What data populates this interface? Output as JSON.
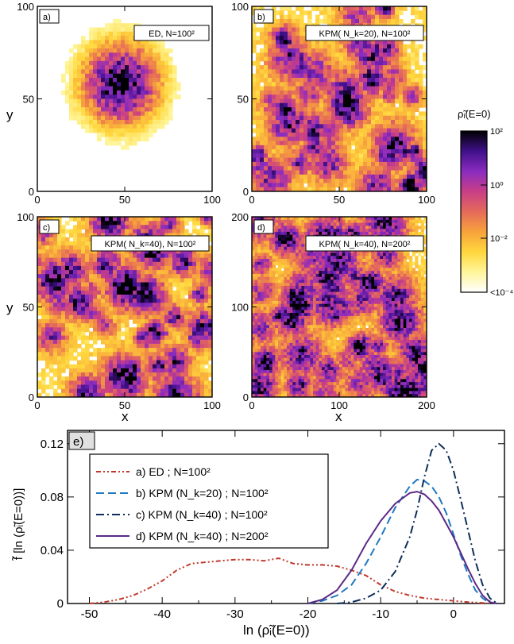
{
  "panels": [
    {
      "tag": "a)",
      "label": "ED, N=100²",
      "xticks": [
        0,
        50,
        100
      ],
      "yticks": [
        0,
        50,
        100
      ],
      "range": [
        0,
        100
      ]
    },
    {
      "tag": "b)",
      "label": "KPM( N_k=20), N=100²",
      "xticks": [
        0,
        50,
        100
      ],
      "yticks": [
        0,
        50,
        100
      ],
      "range": [
        0,
        100
      ]
    },
    {
      "tag": "c)",
      "label": "KPM( N_k=40), N=100²",
      "xticks": [
        0,
        50,
        100
      ],
      "yticks": [
        0,
        50,
        100
      ],
      "range": [
        0,
        100
      ]
    },
    {
      "tag": "d)",
      "label": "KPM( N_k=40), N=200²",
      "xticks": [
        0,
        100,
        200
      ],
      "yticks": [
        0,
        100,
        200
      ],
      "range": [
        0,
        200
      ]
    }
  ],
  "map_axes": {
    "xlabel": "x",
    "ylabel": "y"
  },
  "colorbar": {
    "title": "ρ̃ᵢ(E=0)",
    "ticks": [
      "10²",
      "10⁰",
      "10⁻²",
      "<10⁻⁴"
    ],
    "colors": [
      "#ffffff",
      "#fff59a",
      "#ffd73d",
      "#f7a23c",
      "#e56a5a",
      "#c83e86",
      "#8a2cc0",
      "#40108a",
      "#000000"
    ]
  },
  "chart_data": {
    "type": "line",
    "tag": "e)",
    "xlabel": "ln (ρ̃ᵢ(E=0))",
    "ylabel": "f̃ [ln (ρ̃ᵢ(E=0))]",
    "xlim": [
      -53,
      7
    ],
    "ylim": [
      0,
      0.13
    ],
    "xticks": [
      -50,
      -40,
      -30,
      -20,
      -10,
      0
    ],
    "yticks": [
      0,
      0.04,
      0.08,
      0.12
    ],
    "legend_position": "top-left",
    "series": [
      {
        "name": "a) ED ; N=100²",
        "color": "#c0392b",
        "dash": "6,3,2,3,2,3",
        "x": [
          -50,
          -48,
          -46,
          -44,
          -42,
          -40,
          -38,
          -36,
          -34,
          -32,
          -30,
          -28,
          -26,
          -24,
          -22,
          -20,
          -18,
          -16,
          -14,
          -12,
          -10,
          -8,
          -6,
          -4,
          -2,
          0,
          2,
          4,
          5
        ],
        "y": [
          0.0,
          0.001,
          0.003,
          0.006,
          0.011,
          0.017,
          0.025,
          0.03,
          0.031,
          0.032,
          0.033,
          0.033,
          0.032,
          0.034,
          0.03,
          0.029,
          0.029,
          0.028,
          0.025,
          0.021,
          0.014,
          0.009,
          0.006,
          0.004,
          0.003,
          0.002,
          0.001,
          0.0005,
          0.0
        ]
      },
      {
        "name": "b) KPM (N_k=20) ; N=100²",
        "color": "#1f78c0",
        "dash": "10,5",
        "x": [
          -20,
          -18,
          -16,
          -14,
          -12,
          -10,
          -8,
          -6,
          -5,
          -4,
          -3,
          -2,
          -1,
          0,
          1,
          2,
          3,
          4,
          5
        ],
        "y": [
          0.0,
          0.002,
          0.006,
          0.014,
          0.03,
          0.05,
          0.072,
          0.088,
          0.093,
          0.092,
          0.088,
          0.08,
          0.068,
          0.052,
          0.036,
          0.022,
          0.01,
          0.004,
          0.0
        ]
      },
      {
        "name": "c) KPM (N_k=40) ; N=100²",
        "color": "#0d2d5a",
        "dash": "10,4,2,4",
        "x": [
          -16,
          -14,
          -12,
          -10,
          -8,
          -6,
          -5,
          -4,
          -3,
          -2,
          -1,
          0,
          1,
          2,
          3,
          4,
          5,
          6
        ],
        "y": [
          0.0,
          0.001,
          0.004,
          0.01,
          0.024,
          0.05,
          0.07,
          0.095,
          0.115,
          0.12,
          0.115,
          0.1,
          0.078,
          0.055,
          0.032,
          0.014,
          0.004,
          0.0
        ]
      },
      {
        "name": "d) KPM (N_k=40) ; N=200²",
        "color": "#5b2a86",
        "dash": "",
        "x": [
          -20,
          -18,
          -16,
          -14,
          -12,
          -10,
          -8,
          -6,
          -5,
          -4,
          -3,
          -2,
          -1,
          0,
          1,
          2,
          3,
          4,
          5,
          6
        ],
        "y": [
          0.0,
          0.003,
          0.01,
          0.025,
          0.045,
          0.062,
          0.075,
          0.083,
          0.084,
          0.082,
          0.077,
          0.07,
          0.06,
          0.05,
          0.038,
          0.026,
          0.015,
          0.006,
          0.001,
          0.0
        ]
      }
    ]
  }
}
